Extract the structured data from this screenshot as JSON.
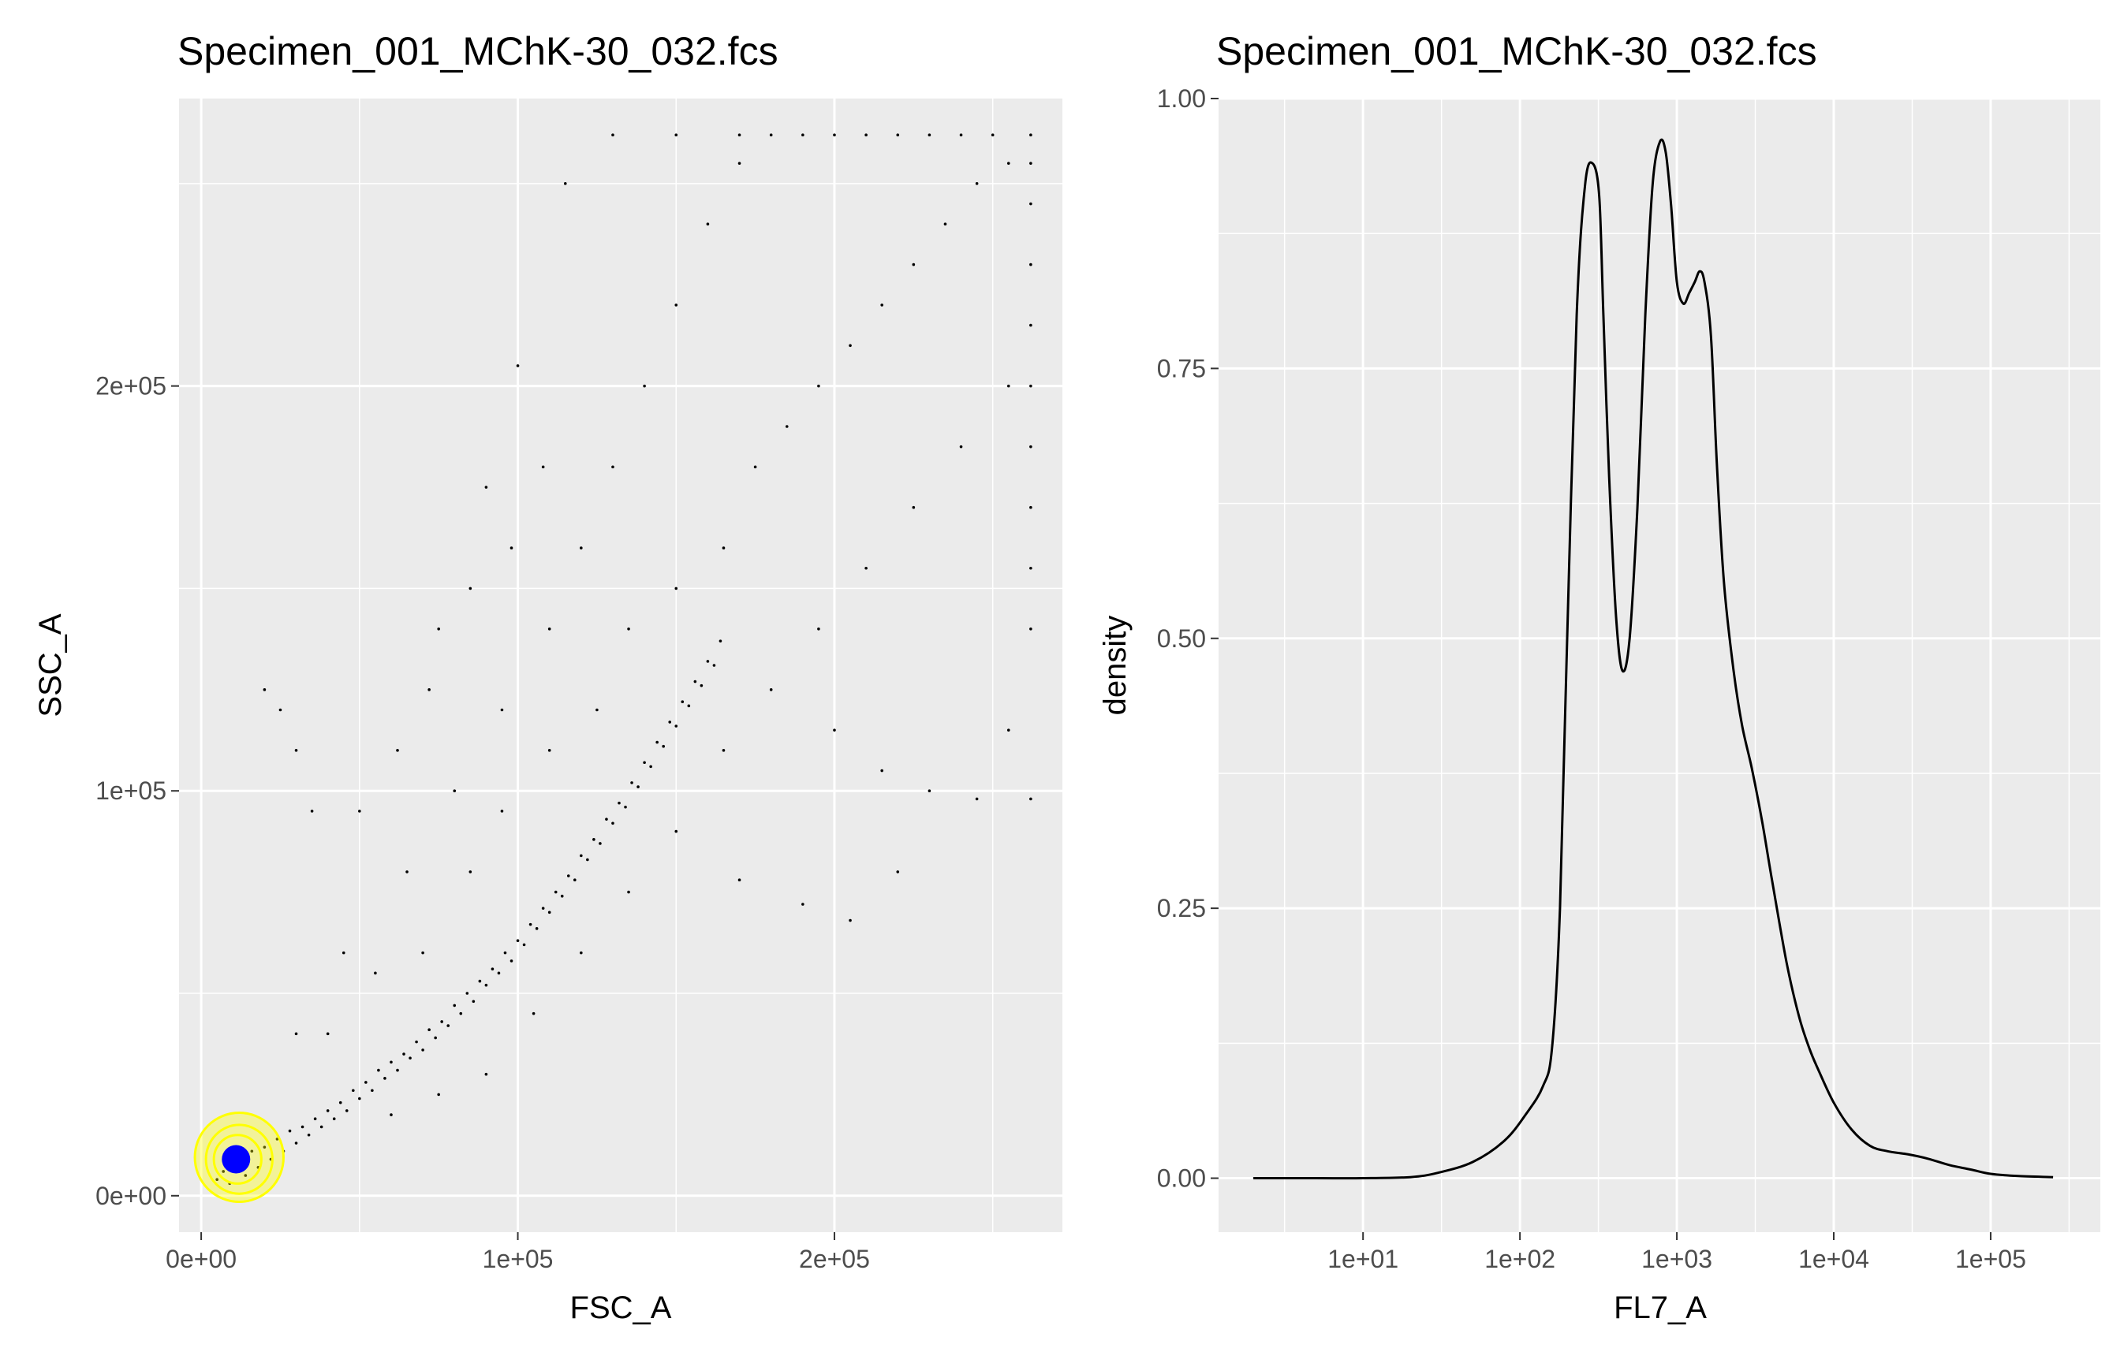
{
  "chart_data": [
    {
      "type": "scatter",
      "title": "Specimen_001_MChK-30_032.fcs",
      "xlabel": "FSC_A",
      "ylabel": "SSC_A",
      "xlim": [
        -7000,
        272000
      ],
      "ylim": [
        -9000,
        271000
      ],
      "x_ticks": [
        {
          "value": 0,
          "label": "0e+00"
        },
        {
          "value": 100000,
          "label": "1e+05"
        },
        {
          "value": 200000,
          "label": "2e+05"
        }
      ],
      "y_ticks": [
        {
          "value": 0,
          "label": "0e+00"
        },
        {
          "value": 100000,
          "label": "1e+05"
        },
        {
          "value": 200000,
          "label": "2e+05"
        }
      ],
      "grid": true,
      "legend": "none",
      "point_color": "#000000",
      "contour_color": "#ffff00",
      "center_marker": {
        "x": 11000,
        "y": 9000,
        "color": "#0000ff"
      },
      "points": [
        [
          5000,
          4000
        ],
        [
          7000,
          6000
        ],
        [
          9000,
          3000
        ],
        [
          12000,
          8000
        ],
        [
          14000,
          5000
        ],
        [
          16000,
          11000
        ],
        [
          18000,
          7000
        ],
        [
          20000,
          12000
        ],
        [
          22000,
          9000
        ],
        [
          24000,
          14000
        ],
        [
          26000,
          11000
        ],
        [
          28000,
          16000
        ],
        [
          30000,
          13000
        ],
        [
          32000,
          17000
        ],
        [
          34000,
          15000
        ],
        [
          36000,
          19000
        ],
        [
          38000,
          17000
        ],
        [
          40000,
          21000
        ],
        [
          42000,
          19000
        ],
        [
          44000,
          23000
        ],
        [
          46000,
          21000
        ],
        [
          48000,
          26000
        ],
        [
          50000,
          24000
        ],
        [
          52000,
          28000
        ],
        [
          54000,
          26000
        ],
        [
          56000,
          31000
        ],
        [
          58000,
          29000
        ],
        [
          60000,
          33000
        ],
        [
          62000,
          31000
        ],
        [
          64000,
          35000
        ],
        [
          66000,
          34000
        ],
        [
          68000,
          38000
        ],
        [
          70000,
          36000
        ],
        [
          72000,
          41000
        ],
        [
          74000,
          39000
        ],
        [
          76000,
          43000
        ],
        [
          78000,
          42000
        ],
        [
          80000,
          47000
        ],
        [
          82000,
          45000
        ],
        [
          84000,
          50000
        ],
        [
          86000,
          48000
        ],
        [
          88000,
          53000
        ],
        [
          90000,
          52000
        ],
        [
          92000,
          56000
        ],
        [
          94000,
          55000
        ],
        [
          96000,
          60000
        ],
        [
          98000,
          58000
        ],
        [
          100000,
          63000
        ],
        [
          102000,
          62000
        ],
        [
          104000,
          67000
        ],
        [
          106000,
          66000
        ],
        [
          108000,
          71000
        ],
        [
          110000,
          70000
        ],
        [
          112000,
          75000
        ],
        [
          114000,
          74000
        ],
        [
          116000,
          79000
        ],
        [
          118000,
          78000
        ],
        [
          120000,
          84000
        ],
        [
          122000,
          83000
        ],
        [
          124000,
          88000
        ],
        [
          126000,
          87000
        ],
        [
          128000,
          93000
        ],
        [
          130000,
          92000
        ],
        [
          132000,
          97000
        ],
        [
          134000,
          96000
        ],
        [
          136000,
          102000
        ],
        [
          138000,
          101000
        ],
        [
          140000,
          107000
        ],
        [
          142000,
          106000
        ],
        [
          144000,
          112000
        ],
        [
          146000,
          111000
        ],
        [
          148000,
          117000
        ],
        [
          150000,
          116000
        ],
        [
          152000,
          122000
        ],
        [
          154000,
          121000
        ],
        [
          156000,
          127000
        ],
        [
          158000,
          126000
        ],
        [
          160000,
          132000
        ],
        [
          162000,
          131000
        ],
        [
          164000,
          137000
        ],
        [
          40000,
          40000
        ],
        [
          55000,
          55000
        ],
        [
          70000,
          60000
        ],
        [
          85000,
          80000
        ],
        [
          95000,
          95000
        ],
        [
          110000,
          110000
        ],
        [
          125000,
          120000
        ],
        [
          135000,
          140000
        ],
        [
          150000,
          150000
        ],
        [
          165000,
          160000
        ],
        [
          175000,
          180000
        ],
        [
          185000,
          190000
        ],
        [
          195000,
          200000
        ],
        [
          205000,
          210000
        ],
        [
          215000,
          220000
        ],
        [
          225000,
          230000
        ],
        [
          235000,
          240000
        ],
        [
          245000,
          250000
        ],
        [
          255000,
          255000
        ],
        [
          262000,
          262000
        ],
        [
          60000,
          20000
        ],
        [
          75000,
          25000
        ],
        [
          90000,
          30000
        ],
        [
          105000,
          45000
        ],
        [
          120000,
          60000
        ],
        [
          135000,
          75000
        ],
        [
          150000,
          90000
        ],
        [
          165000,
          110000
        ],
        [
          180000,
          125000
        ],
        [
          195000,
          140000
        ],
        [
          210000,
          155000
        ],
        [
          225000,
          170000
        ],
        [
          240000,
          185000
        ],
        [
          255000,
          200000
        ],
        [
          262000,
          215000
        ],
        [
          262000,
          230000
        ],
        [
          262000,
          245000
        ],
        [
          200000,
          262000
        ],
        [
          220000,
          262000
        ],
        [
          240000,
          262000
        ],
        [
          30000,
          40000
        ],
        [
          45000,
          60000
        ],
        [
          65000,
          80000
        ],
        [
          80000,
          100000
        ],
        [
          95000,
          120000
        ],
        [
          110000,
          140000
        ],
        [
          120000,
          160000
        ],
        [
          130000,
          180000
        ],
        [
          140000,
          200000
        ],
        [
          150000,
          220000
        ],
        [
          160000,
          240000
        ],
        [
          170000,
          255000
        ],
        [
          180000,
          262000
        ],
        [
          190000,
          262000
        ],
        [
          130000,
          262000
        ],
        [
          150000,
          262000
        ],
        [
          115000,
          250000
        ],
        [
          100000,
          205000
        ],
        [
          90000,
          175000
        ],
        [
          75000,
          140000
        ],
        [
          35000,
          95000
        ],
        [
          30000,
          110000
        ],
        [
          25000,
          120000
        ],
        [
          20000,
          125000
        ],
        [
          50000,
          95000
        ],
        [
          62000,
          110000
        ],
        [
          72000,
          125000
        ],
        [
          85000,
          150000
        ],
        [
          98000,
          160000
        ],
        [
          108000,
          180000
        ],
        [
          200000,
          115000
        ],
        [
          215000,
          105000
        ],
        [
          230000,
          100000
        ],
        [
          245000,
          98000
        ],
        [
          255000,
          115000
        ],
        [
          262000,
          98000
        ],
        [
          220000,
          80000
        ],
        [
          205000,
          68000
        ],
        [
          190000,
          72000
        ],
        [
          170000,
          78000
        ],
        [
          262000,
          140000
        ],
        [
          262000,
          155000
        ],
        [
          262000,
          170000
        ],
        [
          262000,
          185000
        ],
        [
          262000,
          200000
        ],
        [
          262000,
          255000
        ],
        [
          250000,
          262000
        ],
        [
          230000,
          262000
        ],
        [
          210000,
          262000
        ],
        [
          170000,
          262000
        ]
      ],
      "contours": [
        {
          "cx": 12000,
          "cy": 9500,
          "rx": 14000,
          "ry": 11000
        },
        {
          "cx": 12000,
          "cy": 9000,
          "rx": 10500,
          "ry": 8500
        },
        {
          "cx": 11500,
          "cy": 9000,
          "rx": 7500,
          "ry": 6000
        }
      ]
    },
    {
      "type": "line",
      "title": "Specimen_001_MChK-30_032.fcs",
      "xlabel": "FL7_A",
      "ylabel": "density",
      "x_scale": "log10",
      "xlim": [
        1.2,
        500000
      ],
      "ylim": [
        -0.05,
        1.0
      ],
      "x_ticks": [
        {
          "value": 10,
          "label": "1e+01"
        },
        {
          "value": 100,
          "label": "1e+02"
        },
        {
          "value": 1000,
          "label": "1e+03"
        },
        {
          "value": 10000,
          "label": "1e+04"
        },
        {
          "value": 100000,
          "label": "1e+05"
        }
      ],
      "y_ticks": [
        {
          "value": 0,
          "label": "0.00"
        },
        {
          "value": 0.25,
          "label": "0.25"
        },
        {
          "value": 0.5,
          "label": "0.50"
        },
        {
          "value": 0.75,
          "label": "0.75"
        },
        {
          "value": 1.0,
          "label": "1.00"
        }
      ],
      "grid": true,
      "legend": "none",
      "line_color": "#000000",
      "x": [
        2,
        5,
        10,
        20,
        30,
        50,
        80,
        110,
        140,
        160,
        180,
        200,
        230,
        260,
        290,
        320,
        340,
        370,
        410,
        450,
        500,
        560,
        630,
        700,
        780,
        850,
        920,
        1000,
        1100,
        1200,
        1300,
        1400,
        1500,
        1650,
        1800,
        2000,
        2300,
        2600,
        3000,
        3500,
        4000,
        5000,
        6000,
        7000,
        8000,
        10000,
        13000,
        17000,
        22000,
        30000,
        40000,
        55000,
        75000,
        100000,
        150000,
        250000
      ],
      "y": [
        0.0,
        0.0,
        0.0,
        0.001,
        0.005,
        0.015,
        0.035,
        0.06,
        0.085,
        0.12,
        0.25,
        0.5,
        0.8,
        0.92,
        0.94,
        0.91,
        0.8,
        0.65,
        0.52,
        0.47,
        0.5,
        0.62,
        0.8,
        0.92,
        0.96,
        0.95,
        0.9,
        0.83,
        0.81,
        0.82,
        0.83,
        0.84,
        0.83,
        0.78,
        0.66,
        0.55,
        0.47,
        0.42,
        0.38,
        0.33,
        0.28,
        0.2,
        0.15,
        0.12,
        0.1,
        0.07,
        0.045,
        0.03,
        0.025,
        0.022,
        0.018,
        0.012,
        0.008,
        0.004,
        0.002,
        0.001
      ]
    }
  ]
}
